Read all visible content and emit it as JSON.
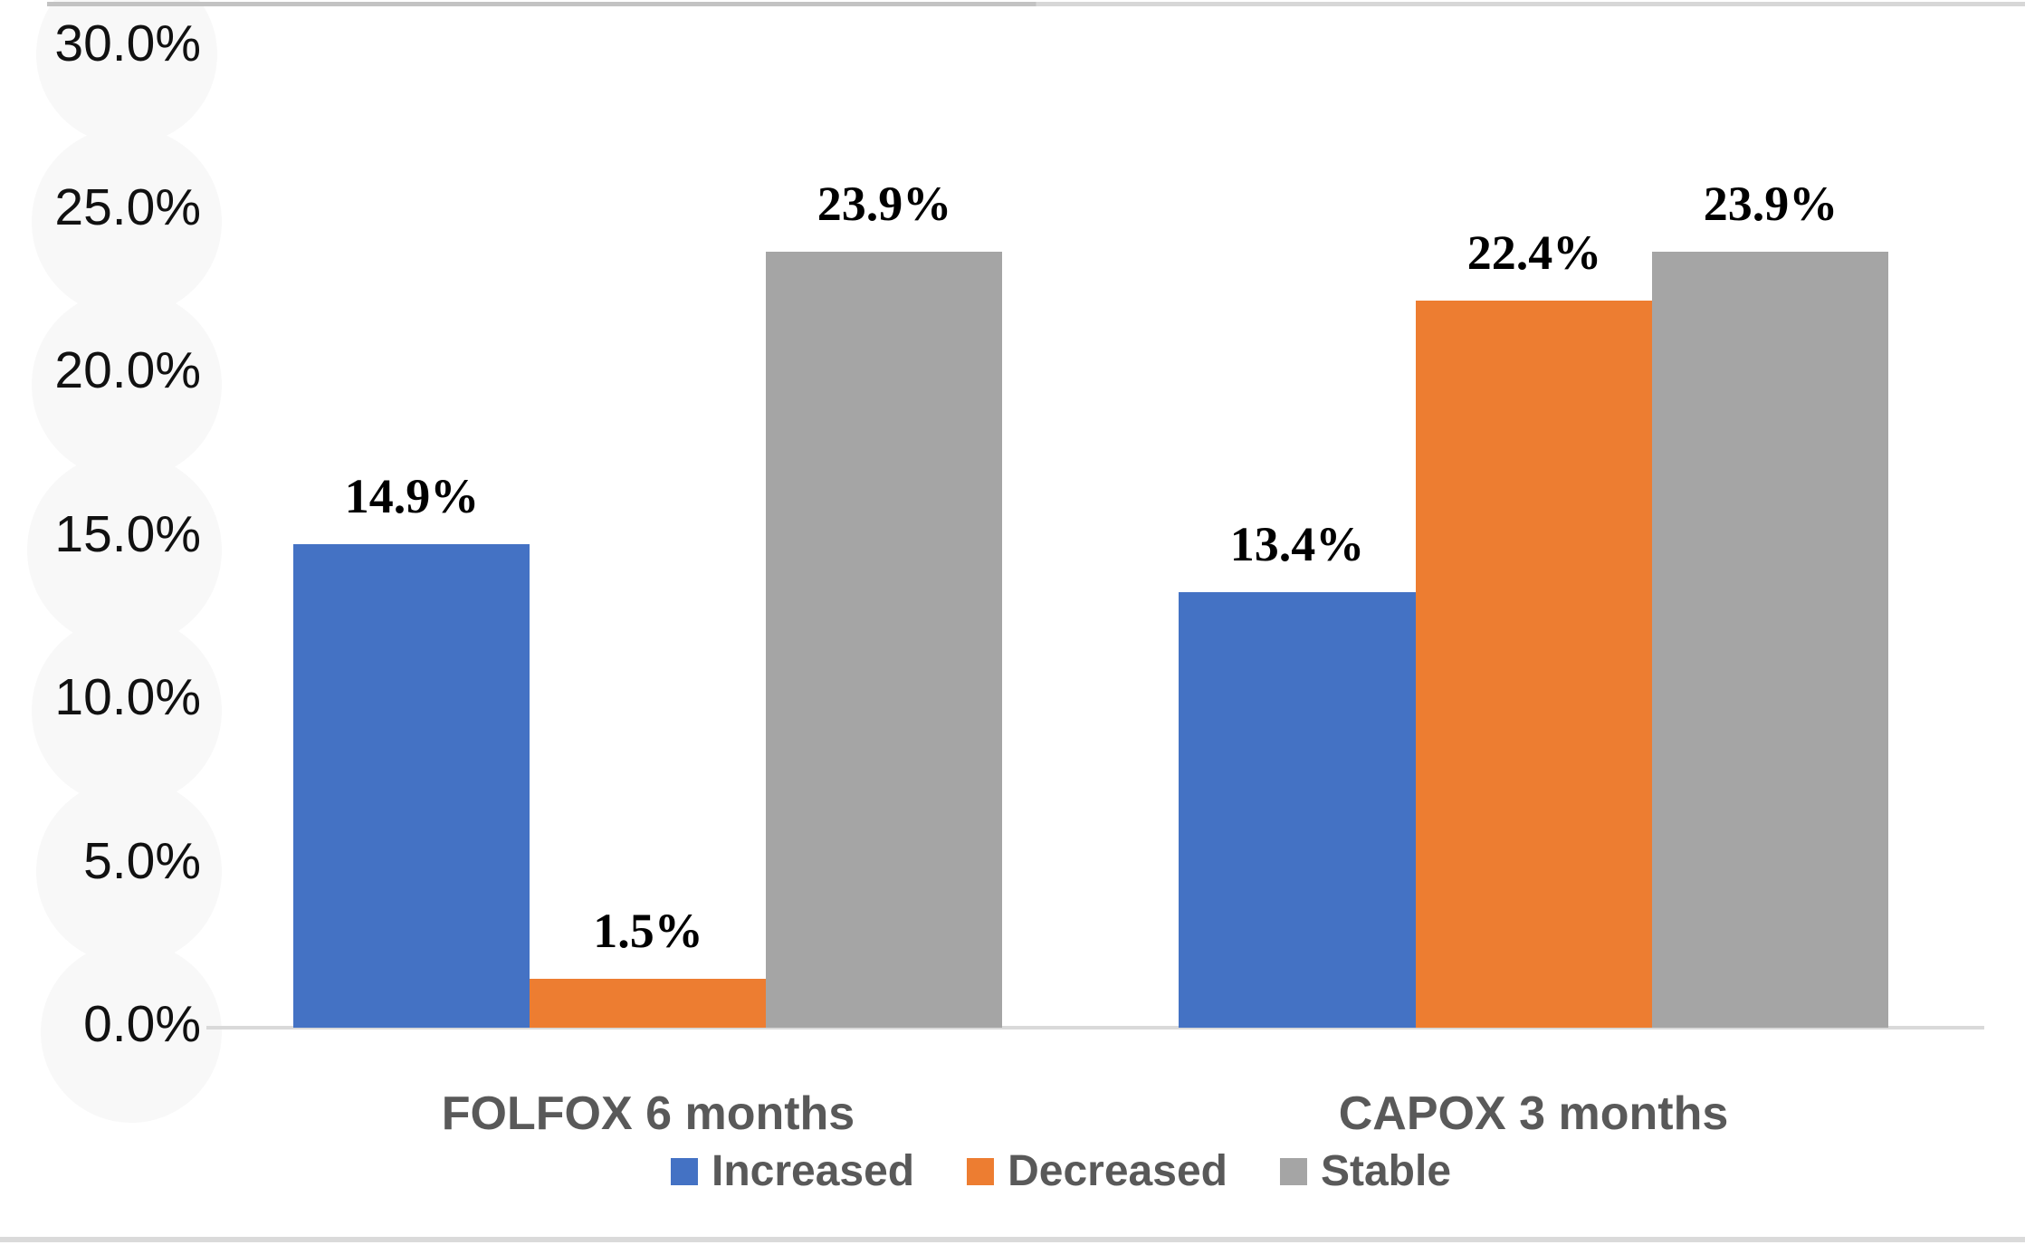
{
  "chart_data": {
    "type": "bar",
    "title": "",
    "categories": [
      "FOLFOX 6 months",
      "CAPOX 3 months"
    ],
    "series": [
      {
        "name": "Increased",
        "color": "#4472C4",
        "values": [
          14.9,
          13.4
        ],
        "labels": [
          "14.9%",
          "13.4%"
        ]
      },
      {
        "name": "Decreased",
        "color": "#ED7D31",
        "values": [
          1.5,
          22.4
        ],
        "labels": [
          "1.5%",
          "22.4%"
        ]
      },
      {
        "name": "Stable",
        "color": "#A5A5A5",
        "values": [
          23.9,
          23.9
        ],
        "labels": [
          "23.9%",
          "23.9%"
        ]
      }
    ],
    "y_axis": {
      "unit": "%",
      "min": 0,
      "max": 30,
      "step": 5,
      "ticks": [
        "30.0%",
        "25.0%",
        "20.0%",
        "15.0%",
        "10.0%",
        "5.0%",
        "0.0%"
      ]
    },
    "legend": [
      "Increased",
      "Decreased",
      "Stable"
    ],
    "legend_position": "bottom",
    "grid": false,
    "colors": {
      "increased": "#4472C4",
      "decreased": "#ED7D31",
      "stable": "#A5A5A5",
      "axis_line": "#D9D9D9",
      "category_text": "#595959",
      "data_label_text": "#000000"
    }
  }
}
